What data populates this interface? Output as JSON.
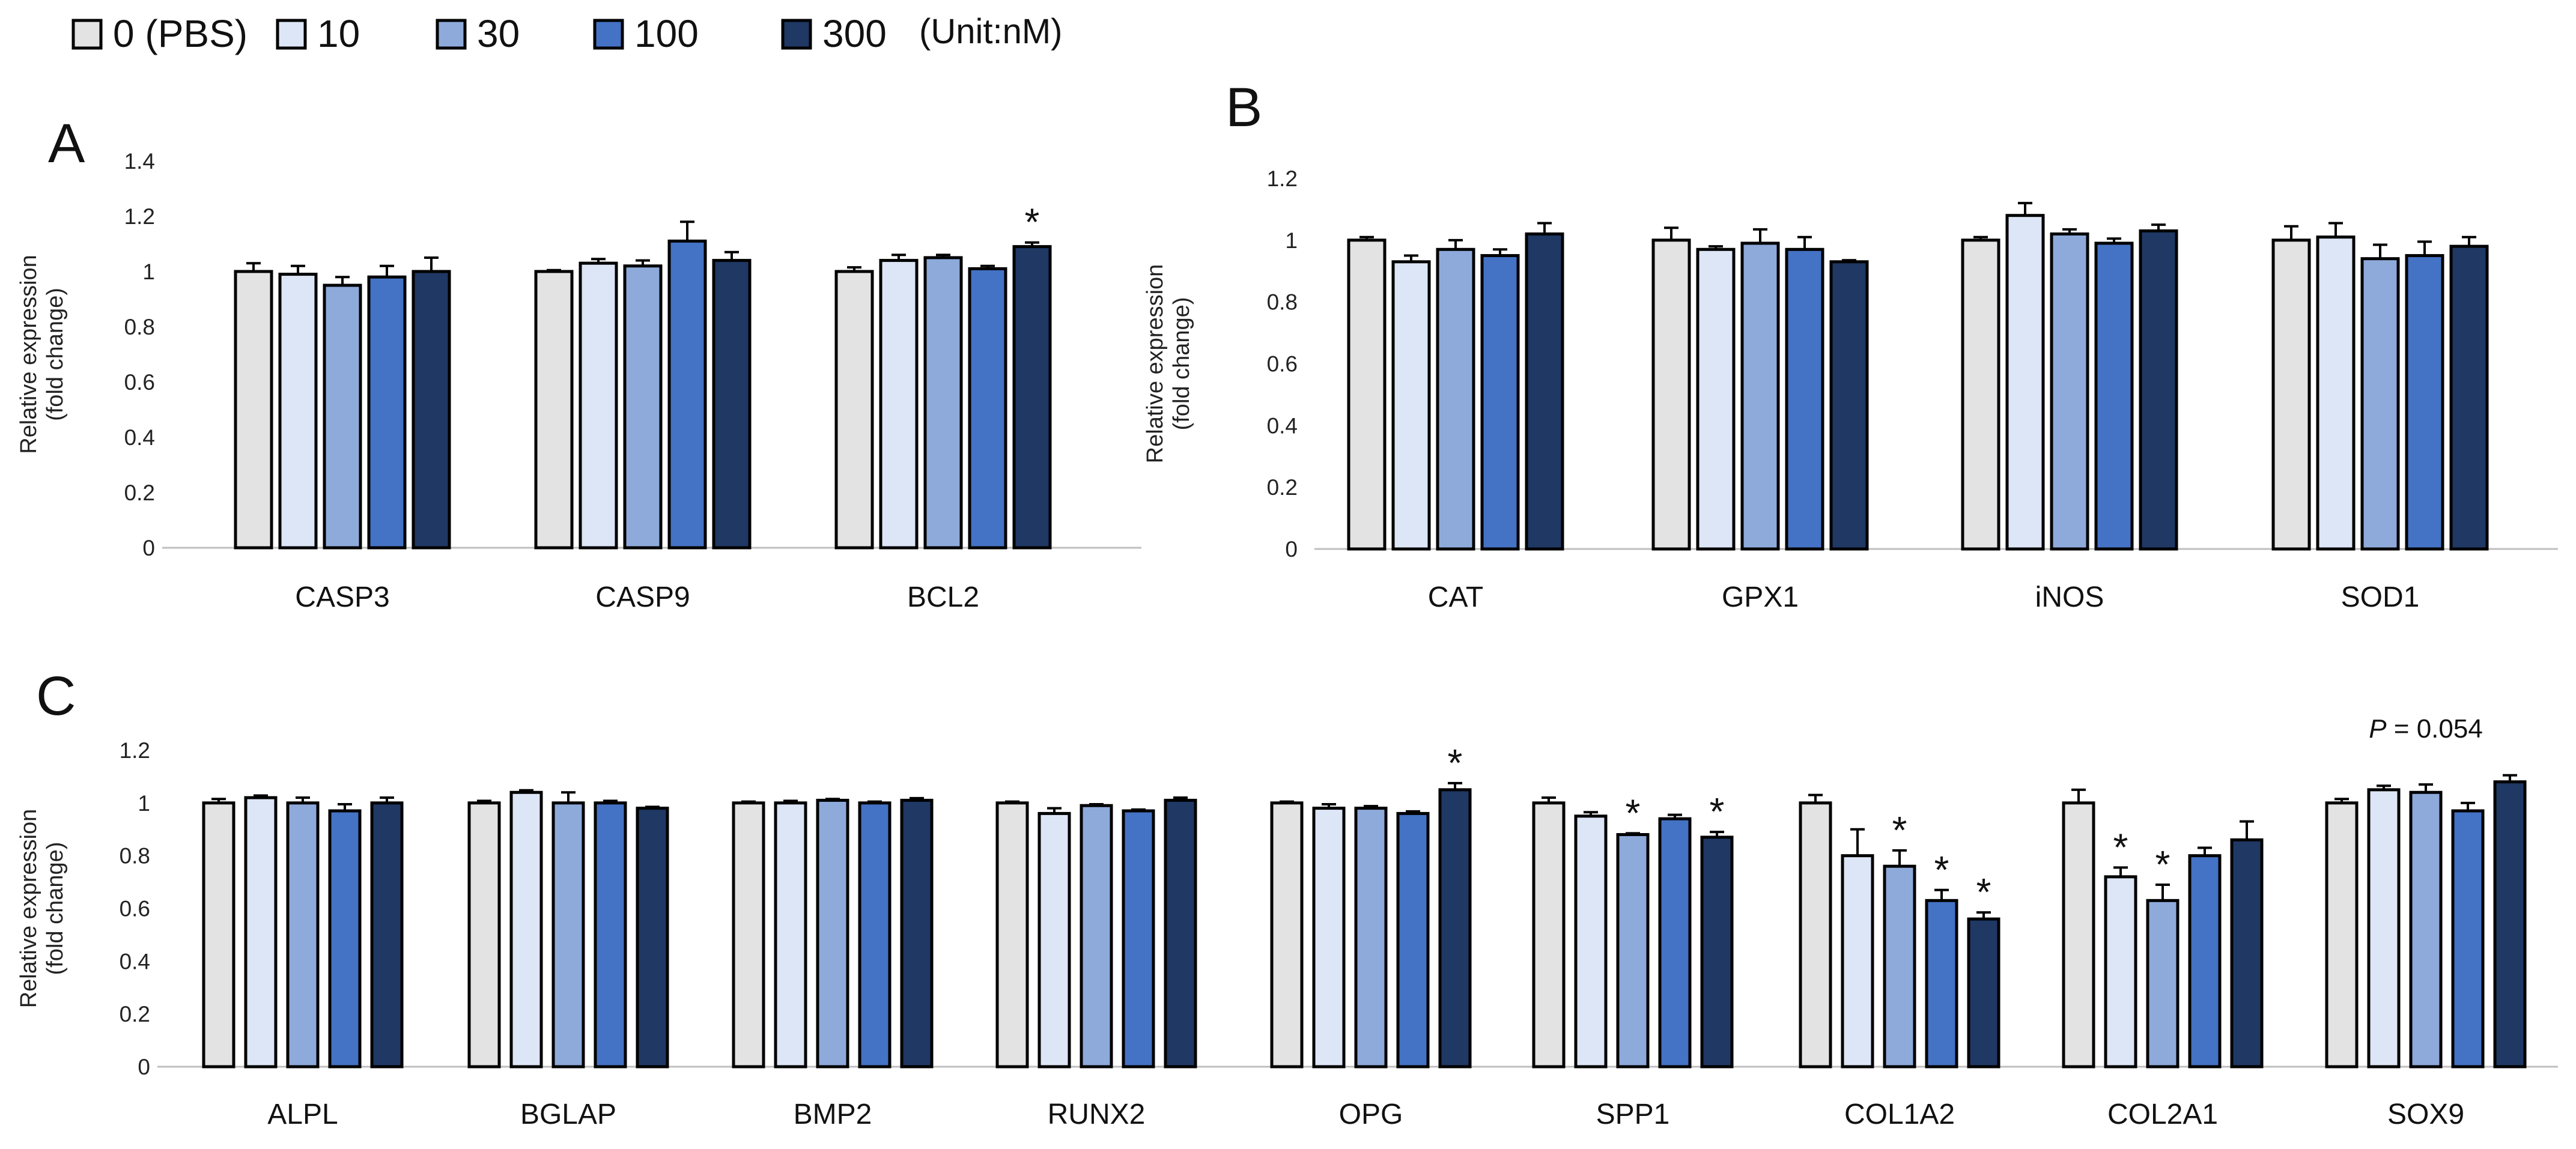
{
  "legend": {
    "items": [
      {
        "label": "0 (PBS)",
        "color": "#e3e3e3"
      },
      {
        "label": "10",
        "color": "#dce6f6"
      },
      {
        "label": "30",
        "color": "#8eaadb"
      },
      {
        "label": "100",
        "color": "#4472c4"
      },
      {
        "label": "300",
        "color": "#1f3864"
      }
    ],
    "unit": "(Unit:nM)"
  },
  "chart_data": [
    {
      "panel": "A",
      "type": "bar",
      "ylabel": [
        "Relative expression",
        "(fold change)"
      ],
      "ylim": [
        0,
        1.4
      ],
      "yticks": [
        "0",
        "0.2",
        "0.4",
        "0.6",
        "0.8",
        "1",
        "1.2",
        "1.4"
      ],
      "categories": [
        "CASP3",
        "CASP9",
        "BCL2"
      ],
      "series": [
        {
          "name": "0 (PBS)",
          "values": [
            1.0,
            1.0,
            1.0
          ],
          "errors": [
            0.03,
            0.005,
            0.015
          ]
        },
        {
          "name": "10",
          "values": [
            0.99,
            1.03,
            1.04
          ],
          "errors": [
            0.03,
            0.015,
            0.02
          ]
        },
        {
          "name": "30",
          "values": [
            0.95,
            1.02,
            1.05
          ],
          "errors": [
            0.03,
            0.02,
            0.01
          ]
        },
        {
          "name": "100",
          "values": [
            0.98,
            1.11,
            1.01
          ],
          "errors": [
            0.04,
            0.07,
            0.01
          ]
        },
        {
          "name": "300",
          "values": [
            1.0,
            1.04,
            1.09
          ],
          "errors": [
            0.05,
            0.03,
            0.015
          ]
        }
      ],
      "significance": [
        {
          "category": "BCL2",
          "series": "300",
          "mark": "*"
        }
      ]
    },
    {
      "panel": "B",
      "type": "bar",
      "ylabel": [
        "Relative expression",
        "(fold change)"
      ],
      "ylim": [
        0,
        1.2
      ],
      "yticks": [
        "0",
        "0.2",
        "0.4",
        "0.6",
        "0.8",
        "1",
        "1.2"
      ],
      "categories": [
        "CAT",
        "GPX1",
        "iNOS",
        "SOD1"
      ],
      "series": [
        {
          "name": "0 (PBS)",
          "values": [
            1.0,
            1.0,
            1.0,
            1.0
          ],
          "errors": [
            0.01,
            0.04,
            0.01,
            0.045
          ]
        },
        {
          "name": "10",
          "values": [
            0.93,
            0.97,
            1.08,
            1.01
          ],
          "errors": [
            0.02,
            0.01,
            0.04,
            0.045
          ]
        },
        {
          "name": "30",
          "values": [
            0.97,
            0.99,
            1.02,
            0.94
          ],
          "errors": [
            0.03,
            0.045,
            0.015,
            0.045
          ]
        },
        {
          "name": "100",
          "values": [
            0.95,
            0.97,
            0.99,
            0.95
          ],
          "errors": [
            0.02,
            0.04,
            0.015,
            0.045
          ]
        },
        {
          "name": "300",
          "values": [
            1.02,
            0.93,
            1.03,
            0.98
          ],
          "errors": [
            0.035,
            0.005,
            0.02,
            0.03
          ]
        }
      ],
      "significance": []
    },
    {
      "panel": "C",
      "type": "bar",
      "ylabel": [
        "Relative expression",
        "(fold change)"
      ],
      "ylim": [
        0,
        1.2
      ],
      "yticks": [
        "0",
        "0.2",
        "0.4",
        "0.6",
        "0.8",
        "1",
        "1.2"
      ],
      "categories": [
        "ALPL",
        "BGLAP",
        "BMP2",
        "RUNX2",
        "OPG",
        "SPP1",
        "COL1A2",
        "COL2A1",
        "SOX9"
      ],
      "series": [
        {
          "name": "0 (PBS)",
          "values": [
            1.0,
            1.0,
            1.0,
            1.0,
            1.0,
            1.0,
            1.0,
            1.0,
            1.0
          ],
          "errors": [
            0.015,
            0.008,
            0.005,
            0.005,
            0.005,
            0.02,
            0.03,
            0.05,
            0.015
          ]
        },
        {
          "name": "10",
          "values": [
            1.02,
            1.04,
            1.0,
            0.96,
            0.98,
            0.95,
            0.8,
            0.72,
            1.05
          ],
          "errors": [
            0.008,
            0.008,
            0.008,
            0.02,
            0.015,
            0.015,
            0.1,
            0.035,
            0.015
          ]
        },
        {
          "name": "30",
          "values": [
            1.0,
            1.0,
            1.01,
            0.99,
            0.98,
            0.88,
            0.76,
            0.63,
            1.04
          ],
          "errors": [
            0.02,
            0.04,
            0.005,
            0.005,
            0.008,
            0.005,
            0.06,
            0.06,
            0.03
          ]
        },
        {
          "name": "100",
          "values": [
            0.97,
            1.0,
            1.0,
            0.97,
            0.96,
            0.94,
            0.63,
            0.8,
            0.97
          ],
          "errors": [
            0.025,
            0.008,
            0.005,
            0.005,
            0.008,
            0.015,
            0.04,
            0.03,
            0.03
          ]
        },
        {
          "name": "300",
          "values": [
            1.0,
            0.98,
            1.01,
            1.01,
            1.05,
            0.87,
            0.56,
            0.86,
            1.08
          ],
          "errors": [
            0.02,
            0.005,
            0.008,
            0.01,
            0.025,
            0.02,
            0.025,
            0.07,
            0.025
          ]
        }
      ],
      "significance": [
        {
          "category": "OPG",
          "series": "300",
          "mark": "*"
        },
        {
          "category": "SPP1",
          "series": "30",
          "mark": "*"
        },
        {
          "category": "SPP1",
          "series": "300",
          "mark": "*"
        },
        {
          "category": "COL1A2",
          "series": "30",
          "mark": "*"
        },
        {
          "category": "COL1A2",
          "series": "100",
          "mark": "*"
        },
        {
          "category": "COL1A2",
          "series": "300",
          "mark": "*"
        },
        {
          "category": "COL2A1",
          "series": "10",
          "mark": "*"
        },
        {
          "category": "COL2A1",
          "series": "30",
          "mark": "*"
        }
      ],
      "annotation": {
        "category": "SOX9",
        "italic": "P",
        "rest": " = 0.054"
      }
    }
  ]
}
